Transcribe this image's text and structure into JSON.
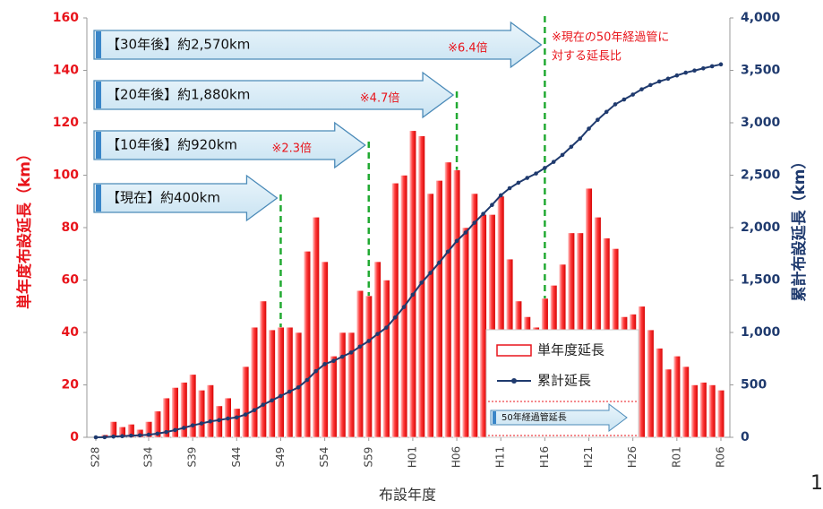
{
  "chart_data": {
    "type": "bar",
    "categories": [
      "S28",
      null,
      null,
      null,
      null,
      null,
      "S34",
      null,
      null,
      null,
      null,
      "S39",
      null,
      null,
      null,
      null,
      "S44",
      null,
      null,
      null,
      null,
      "S49",
      null,
      null,
      null,
      null,
      "S54",
      null,
      null,
      null,
      null,
      "S59",
      null,
      null,
      null,
      null,
      "H01",
      null,
      null,
      null,
      null,
      "H06",
      null,
      null,
      null,
      null,
      "H11",
      null,
      null,
      null,
      null,
      "H16",
      null,
      null,
      null,
      null,
      "H21",
      null,
      null,
      null,
      null,
      "H26",
      null,
      null,
      null,
      null,
      "R01",
      null,
      null,
      null,
      null,
      "R06"
    ],
    "series": [
      {
        "name": "単年度延長",
        "color": "#e8141b",
        "values": [
          0,
          1,
          6,
          4,
          5,
          3,
          6,
          10,
          15,
          19,
          21,
          24,
          18,
          20,
          12,
          15,
          11,
          27,
          42,
          52,
          41,
          42,
          42,
          40,
          71,
          84,
          67,
          31,
          40,
          40,
          56,
          54,
          67,
          60,
          97,
          100,
          117,
          115,
          93,
          98,
          105,
          102,
          80,
          93,
          85,
          85,
          92,
          68,
          52,
          46,
          42,
          53,
          58,
          66,
          78,
          78,
          95,
          84,
          76,
          72,
          46,
          47,
          50,
          41,
          34,
          26,
          31,
          27,
          20,
          21,
          20,
          18
        ]
      },
      {
        "name": "累計延長",
        "type": "line",
        "axis": "y2",
        "color": "#1f3a6e",
        "values": [
          0,
          1,
          7,
          11,
          16,
          19,
          25,
          35,
          50,
          69,
          90,
          114,
          132,
          152,
          164,
          179,
          190,
          217,
          259,
          311,
          352,
          394,
          436,
          476,
          547,
          631,
          698,
          729,
          769,
          809,
          865,
          919,
          986,
          1046,
          1143,
          1243,
          1360,
          1475,
          1568,
          1666,
          1771,
          1873,
          1953,
          2046,
          2131,
          2216,
          2308,
          2376,
          2428,
          2474,
          2516,
          2569,
          2627,
          2693,
          2771,
          2849,
          2944,
          3028,
          3104,
          3176,
          3222,
          3269,
          3319,
          3360,
          3394,
          3420,
          3451,
          3478,
          3498,
          3519,
          3539,
          3557
        ]
      }
    ],
    "ylim": [
      0,
      160
    ],
    "yticks": [
      0,
      20,
      40,
      60,
      80,
      100,
      120,
      140,
      160
    ],
    "y2lim": [
      0,
      4000
    ],
    "y2ticks": [
      0,
      500,
      {
        "value": 1000,
        "label": "1,000"
      },
      {
        "value": 1500,
        "label": "1,500"
      },
      {
        "value": 2000,
        "label": "2,000"
      },
      {
        "value": 2500,
        "label": "2,500"
      },
      {
        "value": 3000,
        "label": "3,000"
      },
      {
        "value": 3500,
        "label": "3,500"
      },
      {
        "value": 4000,
        "label": "4,000"
      }
    ],
    "ylabel": "単年度布設延長（km）",
    "y2label": "累計布設延長（km）",
    "xlabel": "布設年度",
    "annotations": [
      {
        "label": "【現在】約400km"
      },
      {
        "label": "【10年後】約920km",
        "ratio": "※2.3倍"
      },
      {
        "label": "【20年後】約1,880km",
        "ratio": "※4.7倍"
      },
      {
        "label": "【30年後】約2,570km",
        "ratio": "※6.4倍"
      }
    ],
    "note": [
      "※現在の50年経過管に",
      "対する延長比"
    ],
    "legend_extra": "50年経過管延長",
    "page_number": "1"
  }
}
